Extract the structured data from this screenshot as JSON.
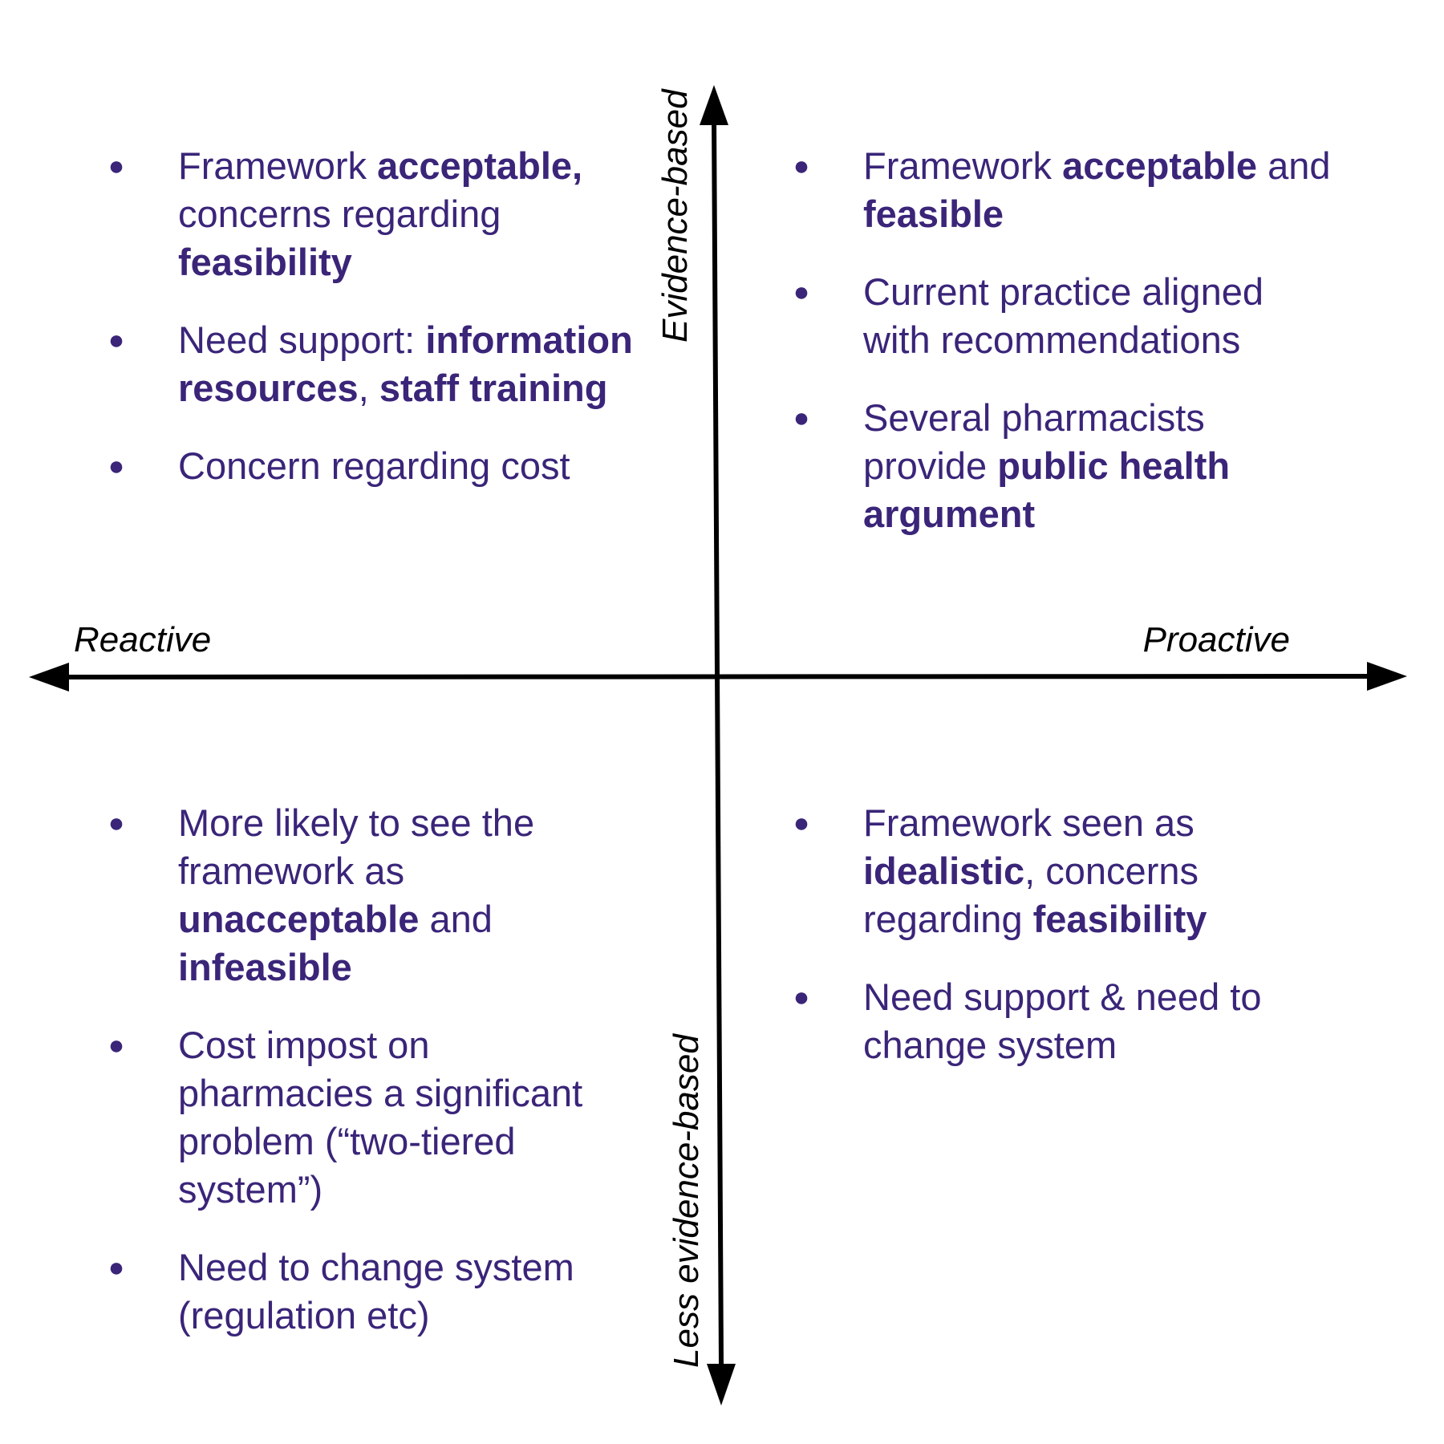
{
  "colors": {
    "text": "#3a2579",
    "axis": "#000000"
  },
  "axes": {
    "top_label": "Evidence-based",
    "bottom_label": "Less evidence-based",
    "left_label": "Reactive",
    "right_label": "Proactive"
  },
  "bullet_glyph": "●",
  "quadrants": {
    "top_left": [
      [
        [
          "Framework ",
          false
        ],
        [
          "acceptable,",
          true
        ],
        [
          " concerns regarding ",
          false
        ],
        [
          "feasibility",
          true
        ]
      ],
      [
        [
          "Need support: ",
          false
        ],
        [
          "information resources",
          true
        ],
        [
          ", ",
          false
        ],
        [
          "staff training",
          true
        ]
      ],
      [
        [
          "Concern regarding cost",
          false
        ]
      ]
    ],
    "top_right": [
      [
        [
          "Framework ",
          false
        ],
        [
          "acceptable",
          true
        ],
        [
          " and ",
          false
        ],
        [
          "feasible",
          true
        ]
      ],
      [
        [
          "Current practice aligned with recommendations",
          false
        ]
      ],
      [
        [
          "Several pharmacists provide ",
          false
        ],
        [
          "public health argument",
          true
        ]
      ]
    ],
    "bottom_left": [
      [
        [
          "More likely to see the framework as ",
          false
        ],
        [
          "unacceptable",
          true
        ],
        [
          " and ",
          false
        ],
        [
          "infeasible",
          true
        ]
      ],
      [
        [
          "Cost impost on pharmacies a significant problem (“two-tiered system”)",
          false
        ]
      ],
      [
        [
          "Need to change system (regulation etc)",
          false
        ]
      ]
    ],
    "bottom_right": [
      [
        [
          "Framework seen as ",
          false
        ],
        [
          "idealistic",
          true
        ],
        [
          ", concerns regarding ",
          false
        ],
        [
          "feasibility",
          true
        ]
      ],
      [
        [
          "Need support & need to change system",
          false
        ]
      ]
    ]
  }
}
